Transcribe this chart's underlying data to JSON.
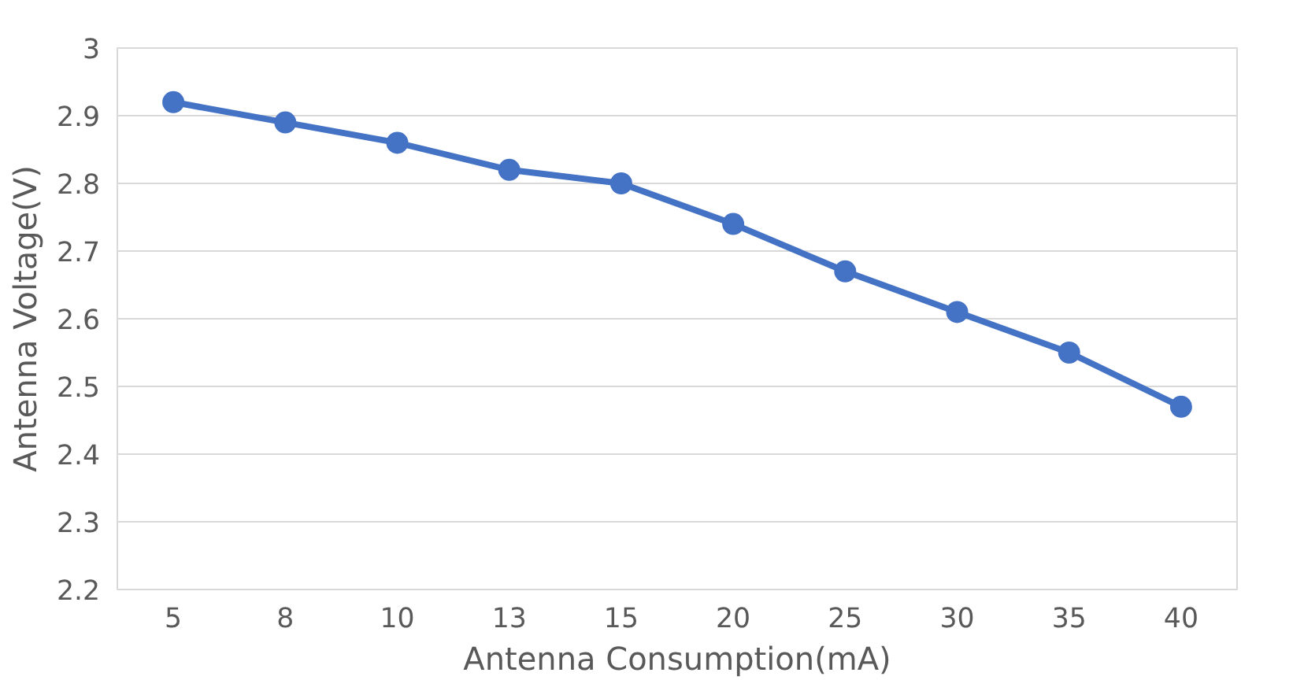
{
  "chart_data": {
    "type": "line",
    "xlabel": "Antenna Consumption(mA)",
    "ylabel": "Antenna Voltage(V)",
    "categories": [
      "5",
      "8",
      "10",
      "13",
      "15",
      "20",
      "25",
      "30",
      "35",
      "40"
    ],
    "series": [
      {
        "color": "#4472c4",
        "values": [
          2.92,
          2.89,
          2.86,
          2.82,
          2.8,
          2.74,
          2.67,
          2.61,
          2.55,
          2.47
        ]
      }
    ],
    "ylim": [
      2.2,
      3
    ],
    "yticks": [
      2.2,
      2.3,
      2.4,
      2.5,
      2.6,
      2.7,
      2.8,
      2.9,
      3
    ],
    "grid": "y",
    "marker": "circle",
    "line_style": "solid"
  }
}
